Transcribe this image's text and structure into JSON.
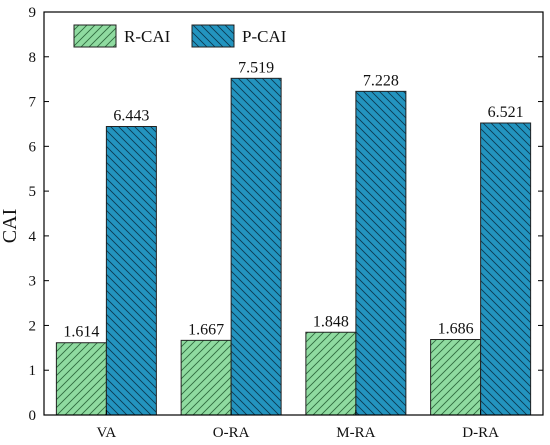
{
  "chart_data": {
    "type": "bar",
    "categories": [
      "VA",
      "O-RA",
      "M-RA",
      "D-RA"
    ],
    "series": [
      {
        "name": "R-CAI",
        "values": [
          1.614,
          1.667,
          1.848,
          1.686
        ],
        "labels": [
          "1.614",
          "1.667",
          "1.848",
          "1.686"
        ],
        "color": "#8fdba0",
        "hatch": "forward"
      },
      {
        "name": "P-CAI",
        "values": [
          6.443,
          7.519,
          7.228,
          6.521
        ],
        "labels": [
          "6.443",
          "7.519",
          "7.228",
          "6.521"
        ],
        "color": "#2394bf",
        "hatch": "back"
      }
    ],
    "title": "",
    "xlabel": "",
    "ylabel": "CAI",
    "ylim": [
      0,
      9
    ],
    "yticks": [
      "0",
      "1",
      "2",
      "3",
      "4",
      "5",
      "6",
      "7",
      "8",
      "9"
    ],
    "grid": false,
    "legend": "top-left"
  }
}
